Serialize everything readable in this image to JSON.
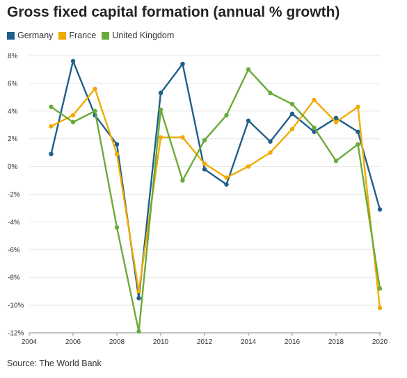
{
  "title": "Gross fixed capital formation (annual % growth)",
  "source": "Source: The World Bank",
  "chart_data": {
    "type": "line",
    "title": "Gross fixed capital formation (annual % growth)",
    "xlabel": "",
    "ylabel": "",
    "xlim": [
      2004,
      2020
    ],
    "ylim": [
      -12,
      8
    ],
    "x_ticks": [
      "2004",
      "2006",
      "2008",
      "2010",
      "2012",
      "2014",
      "2016",
      "2018",
      "2020"
    ],
    "y_ticks": [
      "8%",
      "6%",
      "4%",
      "2%",
      "0%",
      "-2%",
      "-4%",
      "-6%",
      "-8%",
      "-10%",
      "-12%"
    ],
    "grid": true,
    "legend_position": "top-left",
    "x": [
      2005,
      2006,
      2007,
      2008,
      2009,
      2010,
      2011,
      2012,
      2013,
      2014,
      2015,
      2016,
      2017,
      2018,
      2019,
      2020
    ],
    "series": [
      {
        "name": "Germany",
        "color": "#1f5f8b",
        "values": [
          0.9,
          7.6,
          3.7,
          1.6,
          -9.5,
          5.3,
          7.4,
          -0.2,
          -1.3,
          3.3,
          1.8,
          3.8,
          2.5,
          3.5,
          2.5,
          -3.1
        ]
      },
      {
        "name": "France",
        "color": "#f0ab00",
        "values": [
          2.9,
          3.7,
          5.6,
          0.9,
          -9.0,
          2.1,
          2.1,
          0.2,
          -0.8,
          0.0,
          1.0,
          2.7,
          4.8,
          3.2,
          4.3,
          -10.2
        ]
      },
      {
        "name": "United Kingdom",
        "color": "#6aaa3a",
        "values": [
          4.3,
          3.2,
          4.0,
          -4.4,
          -11.9,
          4.1,
          -1.0,
          1.9,
          3.7,
          7.0,
          5.3,
          4.5,
          2.8,
          0.4,
          1.6,
          -8.8
        ]
      }
    ]
  }
}
